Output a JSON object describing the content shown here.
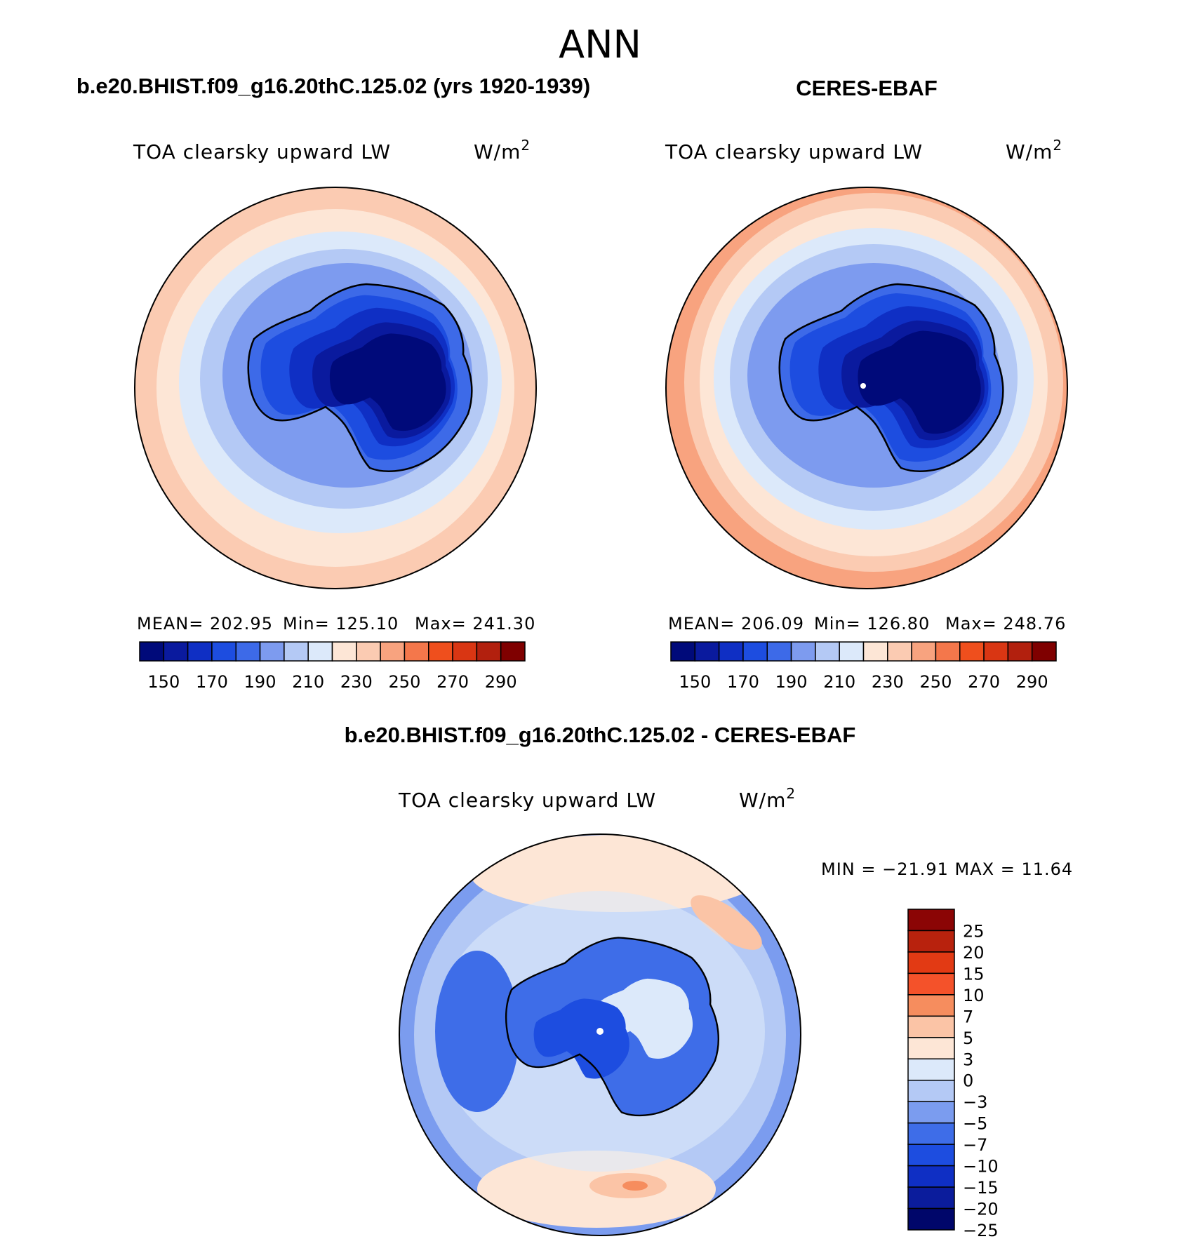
{
  "figure": {
    "title": "ANN",
    "units": "W/m",
    "units_sup": "2"
  },
  "chart_data": [
    {
      "type": "heatmap",
      "projection": "south-polar-stereographic",
      "title": "b.e20.BHIST.f09_g16.20thC.125.02 (yrs 1920-1939)",
      "subtitle": "TOA clearsky upward LW",
      "mean_text": "MEAN= 202.95",
      "min_text": "Min= 125.10",
      "max_text": "Max= 241.30",
      "mean": 202.95,
      "min": 125.1,
      "max": 241.3,
      "colorbar_levels": [
        150,
        160,
        170,
        180,
        190,
        200,
        210,
        220,
        230,
        240,
        250,
        260,
        270,
        280,
        290
      ],
      "colorbar_labels": [
        "150",
        "170",
        "190",
        "210",
        "230",
        "250",
        "270",
        "290"
      ]
    },
    {
      "type": "heatmap",
      "projection": "south-polar-stereographic",
      "title": "CERES-EBAF",
      "subtitle": "TOA clearsky upward LW",
      "mean_text": "MEAN= 206.09",
      "min_text": "Min= 126.80",
      "max_text": "Max= 248.76",
      "mean": 206.09,
      "min": 126.8,
      "max": 248.76,
      "colorbar_levels": [
        150,
        160,
        170,
        180,
        190,
        200,
        210,
        220,
        230,
        240,
        250,
        260,
        270,
        280,
        290
      ],
      "colorbar_labels": [
        "150",
        "170",
        "190",
        "210",
        "230",
        "250",
        "270",
        "290"
      ]
    },
    {
      "type": "heatmap",
      "projection": "south-polar-stereographic",
      "title": "b.e20.BHIST.f09_g16.20thC.125.02 - CERES-EBAF",
      "subtitle": "TOA clearsky upward LW",
      "minmax_text": "MIN = −21.91 MAX =  11.64",
      "min": -21.91,
      "max": 11.64,
      "colorbar_levels": [
        -25,
        -20,
        -15,
        -10,
        -7,
        -5,
        -3,
        0,
        3,
        5,
        7,
        10,
        15,
        20,
        25
      ],
      "colorbar_labels": [
        "25",
        "20",
        "15",
        "10",
        "7",
        "5",
        "3",
        "0",
        "−3",
        "−5",
        "−7",
        "−10",
        "−15",
        "−20",
        "−25"
      ]
    }
  ],
  "colors": {
    "palette": [
      "#000a7a",
      "#0a1a9e",
      "#0f2fc4",
      "#1d4de0",
      "#3d6ae8",
      "#7d9bef",
      "#b4c9f5",
      "#dce9fa",
      "#fde6d6",
      "#fbcbb2",
      "#f8a37f",
      "#f4774b",
      "#ef4f1d",
      "#d93613",
      "#b2200e",
      "#7f0000"
    ],
    "diff_palette": [
      "#00066a",
      "#0b1c9c",
      "#0f2fc4",
      "#1d4de0",
      "#3e6de8",
      "#7b9cef",
      "#b4c9f5",
      "#dce9fa",
      "#fde6d6",
      "#fbc4a6",
      "#f68d5e",
      "#f4522a",
      "#e23a14",
      "#b8220d",
      "#8b0505"
    ],
    "coast": "#000000"
  }
}
